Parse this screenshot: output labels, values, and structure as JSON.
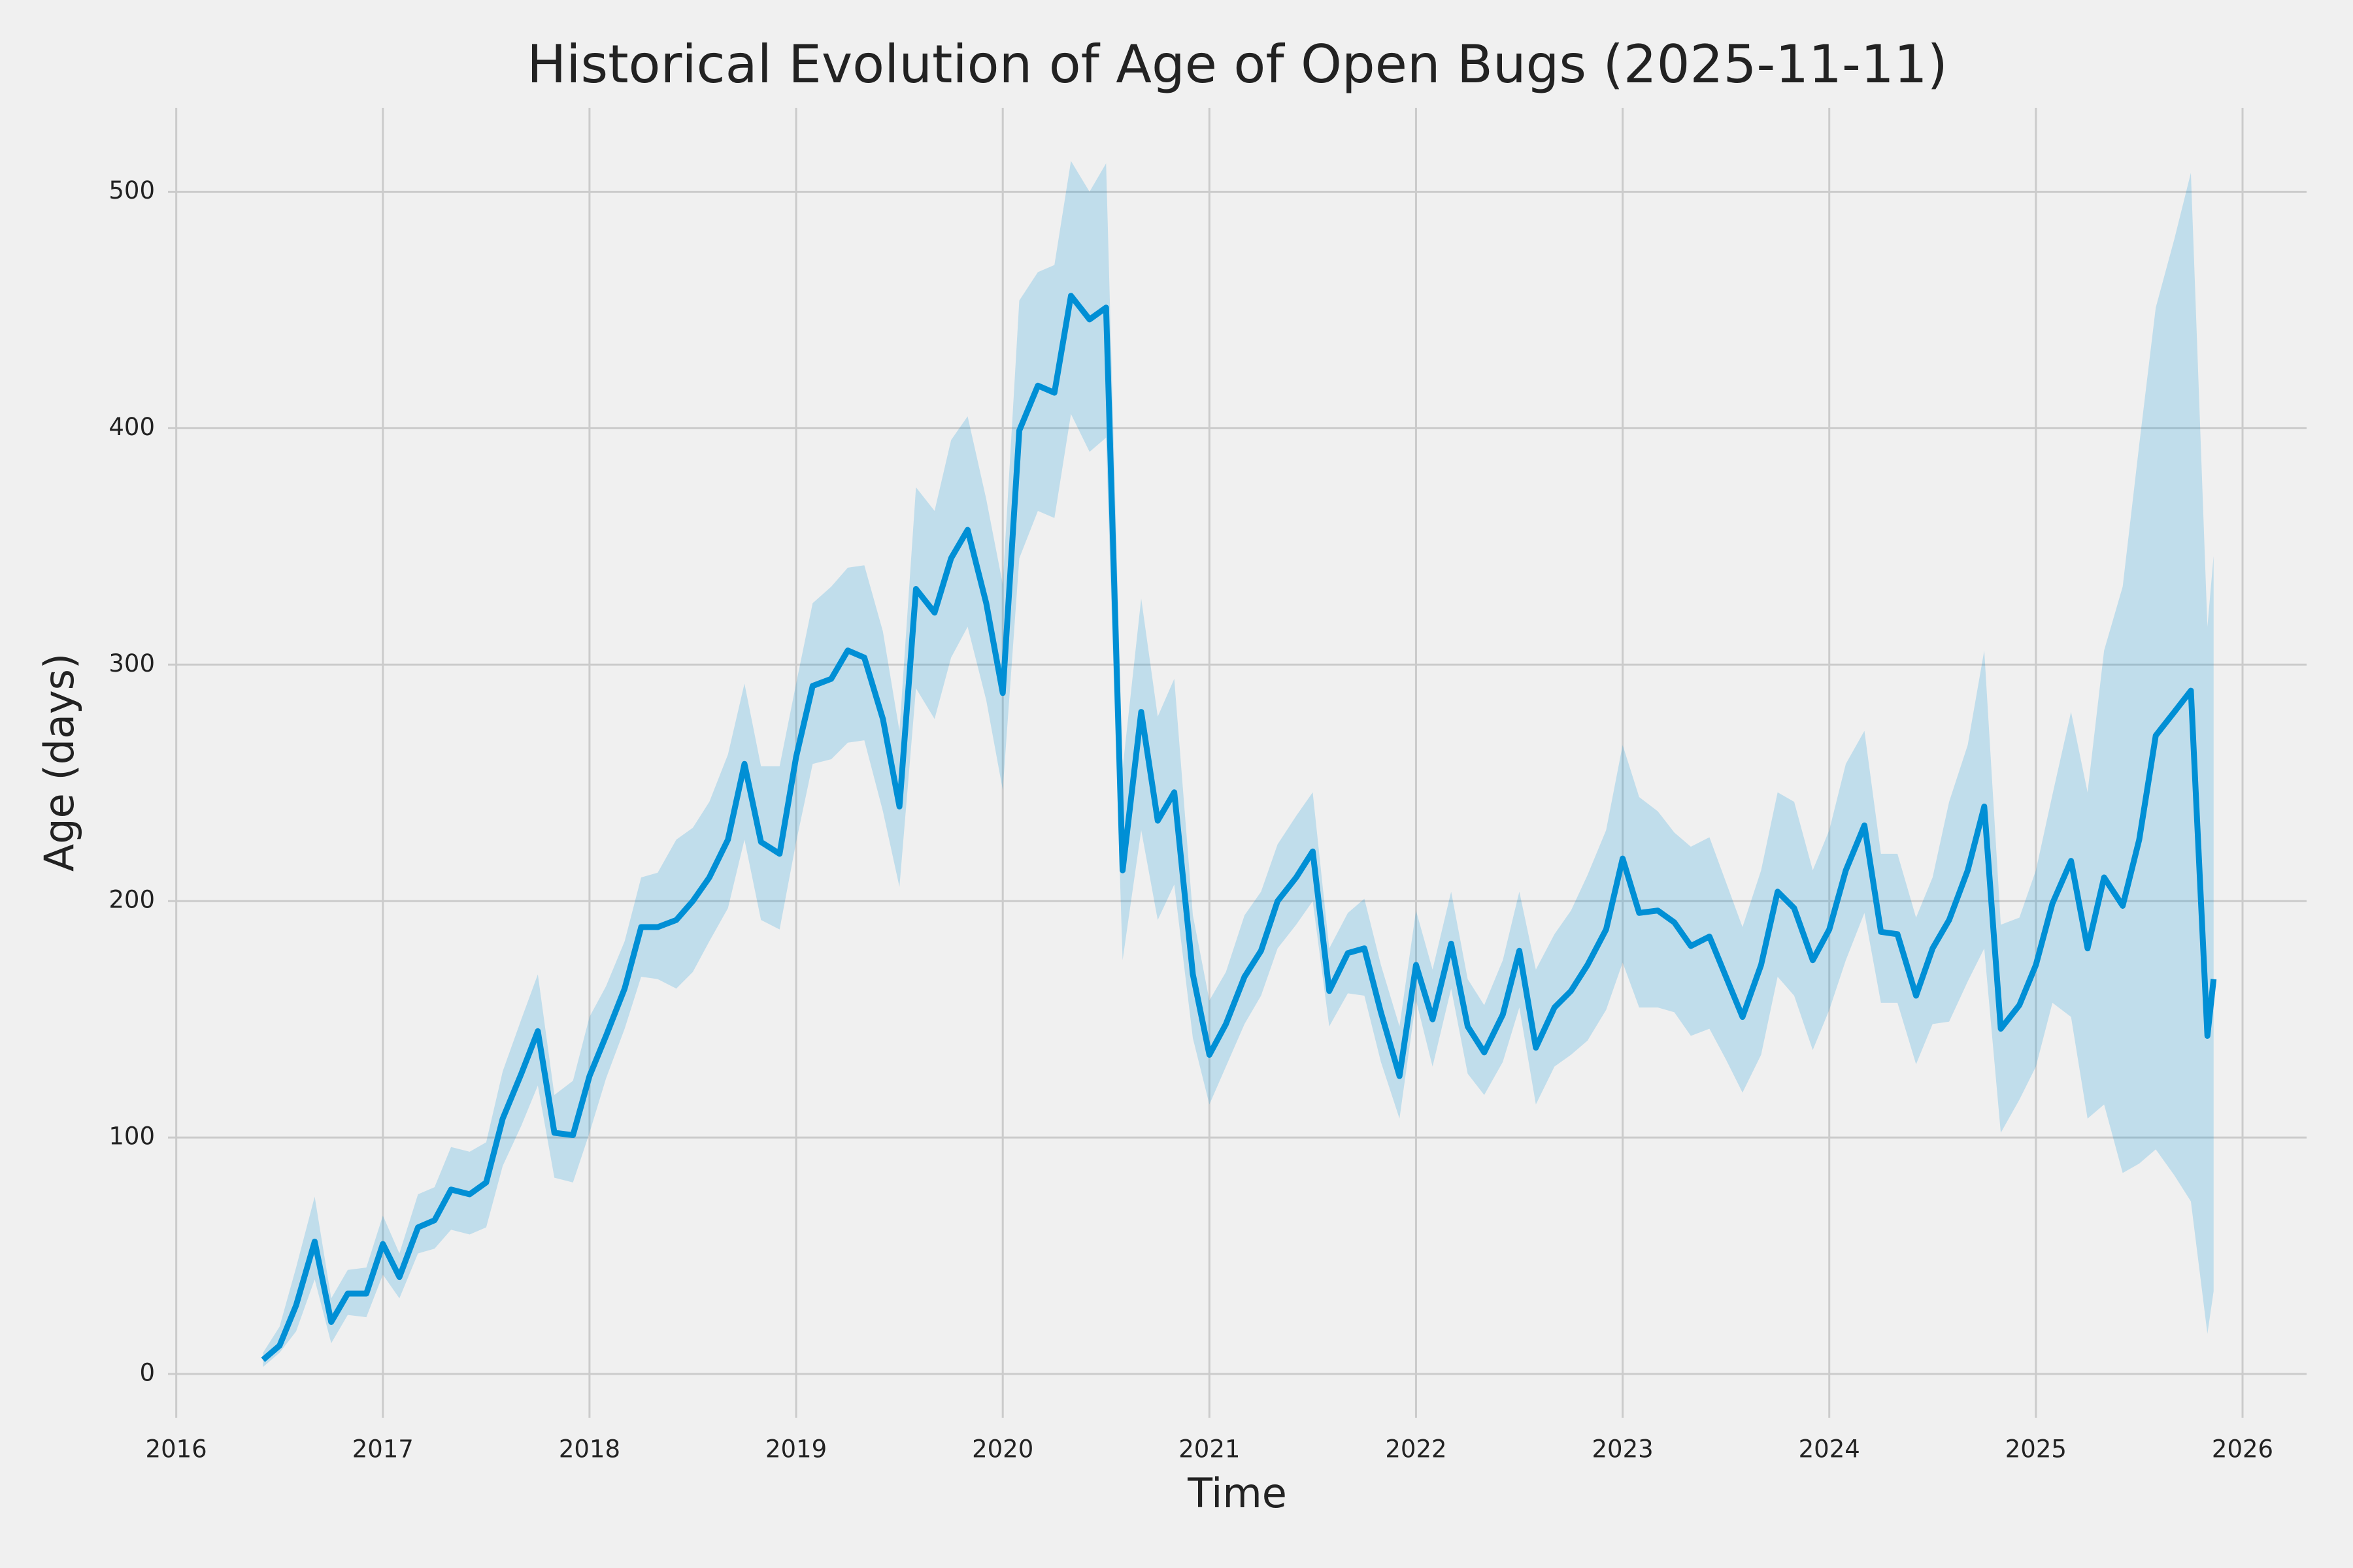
{
  "chart_data": {
    "type": "line",
    "title": "Historical Evolution of Age of Open Bugs (2025-11-11)",
    "xlabel": "Time",
    "ylabel": "Age (days)",
    "x": [
      2016.42,
      2016.5,
      2016.58,
      2016.67,
      2016.75,
      2016.83,
      2016.92,
      2017.0,
      2017.08,
      2017.17,
      2017.25,
      2017.33,
      2017.42,
      2017.5,
      2017.58,
      2017.67,
      2017.75,
      2017.83,
      2017.92,
      2018.0,
      2018.08,
      2018.17,
      2018.25,
      2018.33,
      2018.42,
      2018.5,
      2018.58,
      2018.67,
      2018.75,
      2018.83,
      2018.92,
      2019.0,
      2019.08,
      2019.17,
      2019.25,
      2019.33,
      2019.42,
      2019.5,
      2019.58,
      2019.67,
      2019.75,
      2019.83,
      2019.92,
      2020.0,
      2020.08,
      2020.17,
      2020.25,
      2020.33,
      2020.42,
      2020.5,
      2020.58,
      2020.67,
      2020.75,
      2020.83,
      2020.92,
      2021.0,
      2021.08,
      2021.17,
      2021.25,
      2021.33,
      2021.42,
      2021.5,
      2021.58,
      2021.67,
      2021.75,
      2021.83,
      2021.92,
      2022.0,
      2022.08,
      2022.17,
      2022.25,
      2022.33,
      2022.42,
      2022.5,
      2022.58,
      2022.67,
      2022.75,
      2022.83,
      2022.92,
      2023.0,
      2023.08,
      2023.17,
      2023.25,
      2023.33,
      2023.42,
      2023.5,
      2023.58,
      2023.67,
      2023.75,
      2023.83,
      2023.92,
      2024.0,
      2024.08,
      2024.17,
      2024.25,
      2024.33,
      2024.42,
      2024.5,
      2024.58,
      2024.67,
      2024.75,
      2024.83,
      2024.92,
      2025.0,
      2025.08,
      2025.17,
      2025.25,
      2025.33,
      2025.42,
      2025.5,
      2025.58,
      2025.67,
      2025.75,
      2025.83,
      2025.86
    ],
    "series": [
      {
        "color": "#008fd5",
        "band_color": "#008fd5",
        "values": [
          6,
          12,
          29,
          56,
          22,
          34,
          34,
          55,
          41,
          62,
          65,
          78,
          76,
          81,
          108,
          127,
          145,
          102,
          101,
          126,
          143,
          163,
          189,
          189,
          192,
          200,
          210,
          226,
          258,
          225,
          220,
          261,
          291,
          294,
          306,
          303,
          277,
          240,
          332,
          322,
          345,
          357,
          326,
          288,
          399,
          418,
          415,
          456,
          446,
          451,
          213,
          280,
          234,
          246,
          169,
          135,
          148,
          168,
          179,
          200,
          210,
          221,
          162,
          178,
          180,
          153,
          126,
          173,
          150,
          182,
          147,
          136,
          152,
          179,
          138,
          155,
          162,
          173,
          188,
          218,
          195,
          196,
          191,
          181,
          185,
          168,
          151,
          173,
          204,
          197,
          175,
          188,
          213,
          232,
          187,
          186,
          160,
          180,
          192,
          213,
          240,
          146,
          156,
          173,
          199,
          217,
          180,
          210,
          198,
          226,
          270,
          280,
          289,
          143,
          167
        ],
        "band_lower": [
          3,
          9,
          18,
          40,
          13,
          25,
          24,
          42,
          32,
          51,
          53,
          61,
          59,
          62,
          88,
          105,
          122,
          83,
          81,
          102,
          125,
          146,
          168,
          167,
          163,
          170,
          183,
          197,
          226,
          192,
          188,
          225,
          258,
          260,
          267,
          268,
          238,
          206,
          290,
          277,
          303,
          316,
          285,
          247,
          345,
          365,
          362,
          406,
          390,
          396,
          175,
          230,
          192,
          207,
          142,
          114,
          130,
          148,
          160,
          180,
          190,
          200,
          147,
          161,
          160,
          132,
          108,
          158,
          130,
          163,
          127,
          118,
          132,
          155,
          114,
          130,
          135,
          141,
          154,
          174,
          155,
          155,
          153,
          143,
          146,
          133,
          119,
          135,
          168,
          160,
          137,
          154,
          175,
          195,
          157,
          157,
          131,
          148,
          149,
          166,
          180,
          102,
          116,
          130,
          157,
          151,
          108,
          114,
          85,
          89,
          95,
          84,
          73,
          17,
          35
        ],
        "band_upper": [
          9,
          20,
          45,
          75,
          32,
          44,
          45,
          67,
          51,
          76,
          79,
          96,
          94,
          98,
          128,
          150,
          169,
          118,
          124,
          151,
          164,
          183,
          210,
          212,
          226,
          231,
          242,
          262,
          292,
          257,
          257,
          292,
          326,
          333,
          341,
          342,
          314,
          272,
          375,
          365,
          395,
          405,
          370,
          334,
          454,
          466,
          469,
          513,
          500,
          512,
          256,
          328,
          278,
          294,
          194,
          158,
          170,
          194,
          204,
          224,
          236,
          246,
          180,
          195,
          201,
          173,
          147,
          196,
          171,
          204,
          167,
          156,
          175,
          204,
          171,
          186,
          196,
          211,
          230,
          266,
          244,
          238,
          229,
          223,
          227,
          208,
          189,
          213,
          246,
          242,
          213,
          230,
          258,
          272,
          220,
          220,
          193,
          210,
          242,
          266,
          306,
          190,
          193,
          213,
          245,
          280,
          246,
          306,
          333,
          393,
          451,
          480,
          508,
          316,
          346
        ]
      }
    ],
    "xlim": [
      2015.96,
      2026.31
    ],
    "xticks": [
      2016,
      2017,
      2018,
      2019,
      2020,
      2021,
      2022,
      2023,
      2024,
      2025,
      2026
    ],
    "ylim": [
      -18.5,
      535.5
    ],
    "yticks": [
      0,
      100,
      200,
      300,
      400,
      500
    ],
    "grid": true
  }
}
